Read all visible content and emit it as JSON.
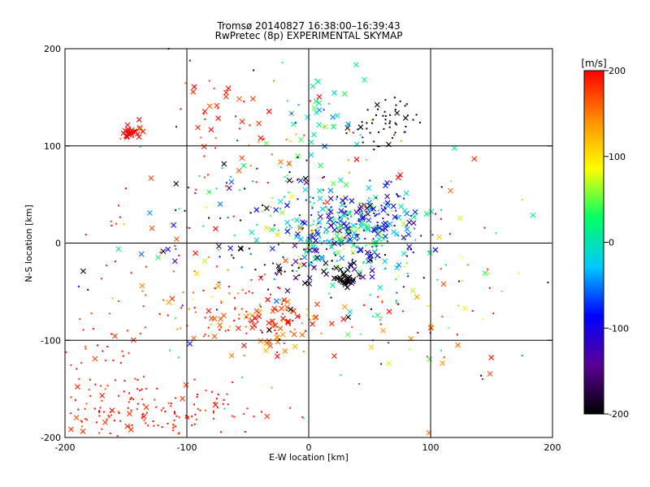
{
  "chart_data": {
    "type": "scatter",
    "title": "Tromsø 20140827 16:38:00–16:39:43",
    "subtitle": "RwPretec (8p) EXPERIMENTAL SKYMAP",
    "xlabel": "E-W location [km]",
    "ylabel": "N-S location [km]",
    "xlim": [
      -200,
      200
    ],
    "ylim": [
      -200,
      200
    ],
    "xticks": [
      "-200",
      "-100",
      "0",
      "100",
      "200"
    ],
    "yticks": [
      "200",
      "100",
      "0",
      "-100",
      "-200"
    ],
    "grid": true,
    "colorbar": {
      "label": "[m/s]",
      "range": [
        -200,
        200
      ],
      "ticks": [
        "200",
        "100",
        "0",
        "-100",
        "-200"
      ],
      "colormap": [
        "#000000",
        "#5a0096",
        "#0000ff",
        "#00c8ff",
        "#00ff64",
        "#ffff00",
        "#ff8c00",
        "#ff0000"
      ]
    },
    "markers": [
      "cross",
      "dot"
    ],
    "clusters": [
      {
        "x": -130,
        "y": -175,
        "sx": 45,
        "sy": 15,
        "n": 150,
        "v": 190,
        "dv": 10,
        "cross": 0.1
      },
      {
        "x": -175,
        "y": -130,
        "sx": 18,
        "sy": 40,
        "n": 55,
        "v": 185,
        "dv": 15,
        "cross": 0.1
      },
      {
        "x": -145,
        "y": 115,
        "sx": 5,
        "sy": 4,
        "n": 25,
        "v": 200,
        "dv": 3,
        "cross": 0.9
      },
      {
        "x": -75,
        "y": 130,
        "sx": 30,
        "sy": 25,
        "n": 40,
        "v": 185,
        "dv": 20,
        "cross": 0.55
      },
      {
        "x": -30,
        "y": -85,
        "sx": 25,
        "sy": 15,
        "n": 90,
        "v": 170,
        "dv": 35,
        "cross": 0.5
      },
      {
        "x": -65,
        "y": -60,
        "sx": 25,
        "sy": 30,
        "n": 60,
        "v": 180,
        "dv": 25,
        "cross": 0.3
      },
      {
        "x": 30,
        "y": 10,
        "sx": 30,
        "sy": 20,
        "n": 320,
        "v": -30,
        "dv": 60,
        "cross": 0.45
      },
      {
        "x": 50,
        "y": 30,
        "sx": 15,
        "sy": 10,
        "n": 60,
        "v": -110,
        "dv": 35,
        "cross": 0.4
      },
      {
        "x": 30,
        "y": -40,
        "sx": 3,
        "sy": 3,
        "n": 25,
        "v": -200,
        "dv": 0,
        "cross": 0.9
      },
      {
        "x": 10,
        "y": -30,
        "sx": 25,
        "sy": 15,
        "n": 50,
        "v": -170,
        "dv": 35,
        "cross": 0.5
      },
      {
        "x": 60,
        "y": 125,
        "sx": 15,
        "sy": 12,
        "n": 50,
        "v": -195,
        "dv": 5,
        "cross": 0.1
      },
      {
        "x": 15,
        "y": 140,
        "sx": 15,
        "sy": 25,
        "n": 35,
        "v": 10,
        "dv": 30,
        "cross": 0.7
      },
      {
        "x": -50,
        "y": 10,
        "sx": 40,
        "sy": 40,
        "n": 80,
        "v": -40,
        "dv": 130,
        "cross": 0.3
      },
      {
        "x": 120,
        "y": -60,
        "sx": 35,
        "sy": 50,
        "n": 50,
        "v": 150,
        "dv": 70,
        "cross": 0.4
      },
      {
        "x": -130,
        "y": -10,
        "sx": 40,
        "sy": 60,
        "n": 40,
        "v": 170,
        "dv": 40,
        "cross": 0.3
      },
      {
        "x": 50,
        "y": -80,
        "sx": 30,
        "sy": 20,
        "n": 25,
        "v": 120,
        "dv": 100,
        "cross": 0.3
      },
      {
        "x": 0,
        "y": 60,
        "sx": 40,
        "sy": 30,
        "n": 50,
        "v": 0,
        "dv": 180,
        "cross": 0.3
      },
      {
        "x": 0,
        "y": 0,
        "sx": 110,
        "sy": 110,
        "n": 120,
        "v": 0,
        "dv": 200,
        "cross": 0.3
      }
    ]
  }
}
